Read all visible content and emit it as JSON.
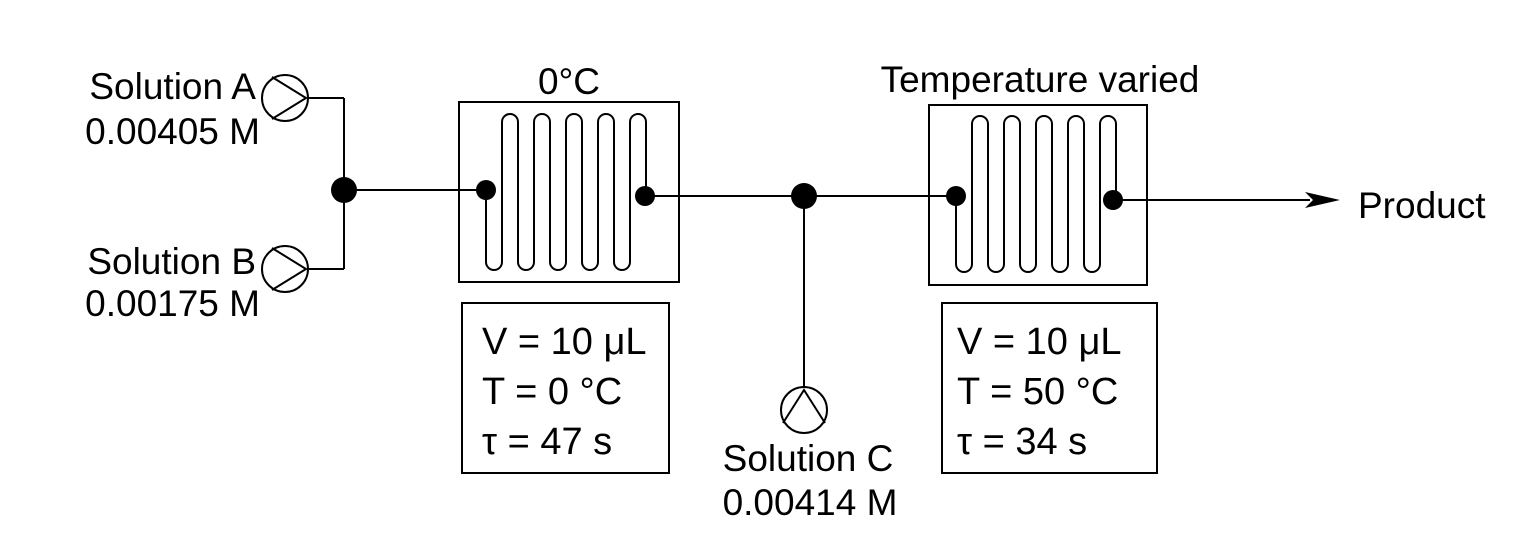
{
  "solutions": {
    "a": {
      "name": "Solution A",
      "conc": "0.00405 M"
    },
    "b": {
      "name": "Solution B",
      "conc": "0.00175 M"
    },
    "c": {
      "name": "Solution C",
      "conc": "0.00414 M"
    }
  },
  "reactor1": {
    "header": "0°C",
    "volume": "V = 10 μL",
    "temperature": "T = 0 °C",
    "residence": "τ = 47 s"
  },
  "reactor2": {
    "header": "Temperature varied",
    "volume": "V = 10 μL",
    "temperature": "T = 50 °C",
    "residence": "τ = 34 s"
  },
  "output": {
    "label": "Product"
  }
}
